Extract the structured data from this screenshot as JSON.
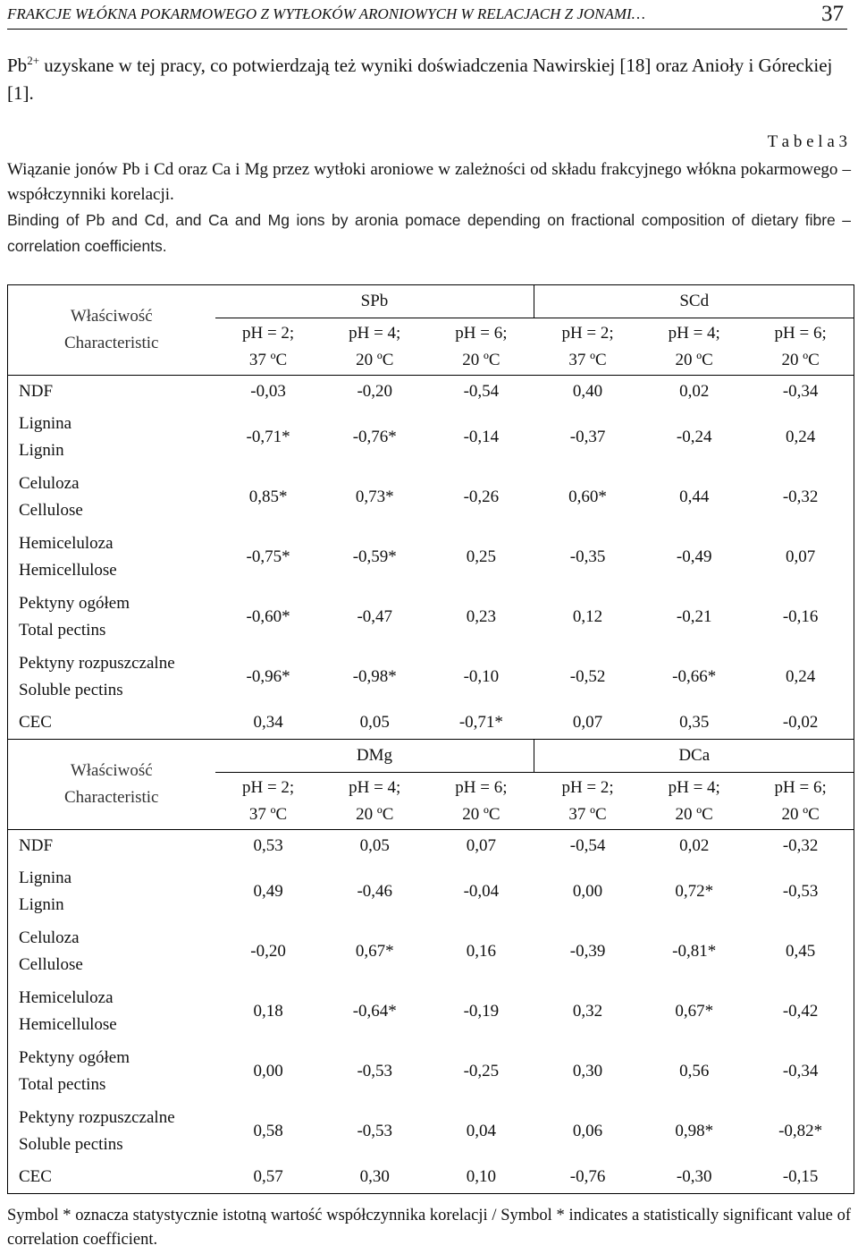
{
  "header": {
    "running_title": "FRAKCJE WŁÓKNA POKARMOWEGO Z WYTŁOKÓW ARONIOWYCH W RELACJACH Z JONAMI…",
    "page_number": "37"
  },
  "intro": {
    "text_before": "Pb",
    "superscript": "2+",
    "text_after": " uzyskane w tej pracy, co potwierdzają też wyniki doświadczenia Nawirskiej [18] oraz Anioły i Góreckiej [1]."
  },
  "caption": {
    "label": "T a b e l a 3",
    "title_pl": "Wiązanie jonów Pb i Cd oraz Ca i Mg przez wytłoki aroniowe w zależności od składu frakcyjnego włókna pokarmowego – współczynniki korelacji.",
    "title_en": "Binding of Pb and Cd, and Ca and Mg ions by aronia pomace depending on fractional composition of dietary fibre – correlation coefficients."
  },
  "tables": [
    {
      "property": [
        "Właściwość",
        "Characteristic"
      ],
      "groups": [
        "SPb",
        "SCd"
      ],
      "columns": [
        [
          "pH = 2;",
          "37 ºC"
        ],
        [
          "pH = 4;",
          "20 ºC"
        ],
        [
          "pH = 6;",
          "20 ºC"
        ],
        [
          "pH = 2;",
          "37 ºC"
        ],
        [
          "pH = 4;",
          "20 ºC"
        ],
        [
          "pH = 6;",
          "20 ºC"
        ]
      ],
      "rows": [
        {
          "label": [
            "NDF"
          ],
          "values": [
            "-0,03",
            "-0,20",
            "-0,54",
            "0,40",
            "0,02",
            "-0,34"
          ]
        },
        {
          "label": [
            "Lignina",
            "Lignin"
          ],
          "values": [
            "-0,71*",
            "-0,76*",
            "-0,14",
            "-0,37",
            "-0,24",
            "0,24"
          ]
        },
        {
          "label": [
            "Celuloza",
            "Cellulose"
          ],
          "values": [
            "0,85*",
            "0,73*",
            "-0,26",
            "0,60*",
            "0,44",
            "-0,32"
          ]
        },
        {
          "label": [
            "Hemiceluloza",
            "Hemicellulose"
          ],
          "values": [
            "-0,75*",
            "-0,59*",
            "0,25",
            "-0,35",
            "-0,49",
            "0,07"
          ]
        },
        {
          "label": [
            "Pektyny ogółem",
            "Total pectins"
          ],
          "values": [
            "-0,60*",
            "-0,47",
            "0,23",
            "0,12",
            "-0,21",
            "-0,16"
          ]
        },
        {
          "label": [
            "Pektyny rozpuszczalne",
            "Soluble pectins"
          ],
          "values": [
            "-0,96*",
            "-0,98*",
            "-0,10",
            "-0,52",
            "-0,66*",
            "0,24"
          ]
        },
        {
          "label": [
            "CEC"
          ],
          "values": [
            "0,34",
            "0,05",
            "-0,71*",
            "0,07",
            "0,35",
            "-0,02"
          ]
        }
      ]
    },
    {
      "property": [
        "Właściwość",
        "Characteristic"
      ],
      "groups": [
        "DMg",
        "DCa"
      ],
      "columns": [
        [
          "pH = 2;",
          "37 ºC"
        ],
        [
          "pH = 4;",
          "20 ºC"
        ],
        [
          "pH = 6;",
          "20 ºC"
        ],
        [
          "pH = 2;",
          "37 ºC"
        ],
        [
          "pH = 4;",
          "20 ºC"
        ],
        [
          "pH = 6;",
          "20 ºC"
        ]
      ],
      "rows": [
        {
          "label": [
            "NDF"
          ],
          "values": [
            "0,53",
            "0,05",
            "0,07",
            "-0,54",
            "0,02",
            "-0,32"
          ]
        },
        {
          "label": [
            "Lignina",
            "Lignin"
          ],
          "values": [
            "0,49",
            "-0,46",
            "-0,04",
            "0,00",
            "0,72*",
            "-0,53"
          ]
        },
        {
          "label": [
            "Celuloza",
            "Cellulose"
          ],
          "values": [
            "-0,20",
            "0,67*",
            "0,16",
            "-0,39",
            "-0,81*",
            "0,45"
          ]
        },
        {
          "label": [
            "Hemiceluloza",
            "Hemicellulose"
          ],
          "values": [
            "0,18",
            "-0,64*",
            "-0,19",
            "0,32",
            "0,67*",
            "-0,42"
          ]
        },
        {
          "label": [
            "Pektyny ogółem",
            "Total pectins"
          ],
          "values": [
            "0,00",
            "-0,53",
            "-0,25",
            "0,30",
            "0,56",
            "-0,34"
          ]
        },
        {
          "label": [
            "Pektyny rozpuszczalne",
            "Soluble pectins"
          ],
          "values": [
            "0,58",
            "-0,53",
            "0,04",
            "0,06",
            "0,98*",
            "-0,82*"
          ]
        },
        {
          "label": [
            "CEC"
          ],
          "values": [
            "0,57",
            "0,30",
            "0,10",
            "-0,76",
            "-0,30",
            "-0,15"
          ]
        }
      ]
    }
  ],
  "footnote": "Symbol * oznacza statystycznie istotną wartość współczynnika korelacji / Symbol * indicates a statistically significant value of correlation coefficient."
}
